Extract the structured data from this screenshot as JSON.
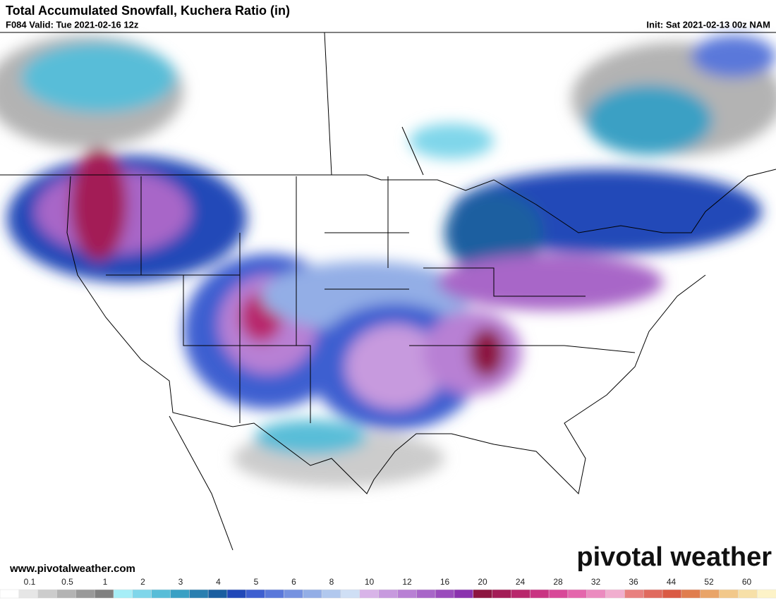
{
  "header": {
    "title": "Total Accumulated Snowfall, Kuchera Ratio (in)",
    "valid": "F084 Valid: Tue 2021-02-16 12z",
    "init": "Init: Sat 2021-02-13 00z NAM"
  },
  "footer": {
    "website": "www.pivotalweather.com",
    "logo": "pivotal weather"
  },
  "colorbar": {
    "labels": [
      "0.1",
      "0.5",
      "1",
      "2",
      "3",
      "4",
      "5",
      "6",
      "8",
      "10",
      "12",
      "16",
      "20",
      "24",
      "28",
      "32",
      "36",
      "44",
      "52",
      "60"
    ],
    "colors": [
      "#ffffff",
      "#e6e6e6",
      "#cccccc",
      "#b3b3b3",
      "#999999",
      "#808080",
      "#a6eef7",
      "#7fd6ea",
      "#58bdd8",
      "#3aa0c4",
      "#2a7fb0",
      "#1a5ea0",
      "#2148b8",
      "#3e5fd0",
      "#5a78da",
      "#7692e0",
      "#93aee6",
      "#b1c8ee",
      "#cfdff5",
      "#d8b4e8",
      "#c79ade",
      "#b880d4",
      "#a866c8",
      "#9a4cbc",
      "#8a32ae",
      "#8c1640",
      "#a31d56",
      "#b8286c",
      "#c93482",
      "#d84898",
      "#e466ac",
      "#eb8bbf",
      "#f1aecf",
      "#e8807f",
      "#e06a5e",
      "#da5a44",
      "#e07d4e",
      "#e9a468",
      "#f2c88a",
      "#f7e0a8",
      "#fdf3c8"
    ]
  }
}
